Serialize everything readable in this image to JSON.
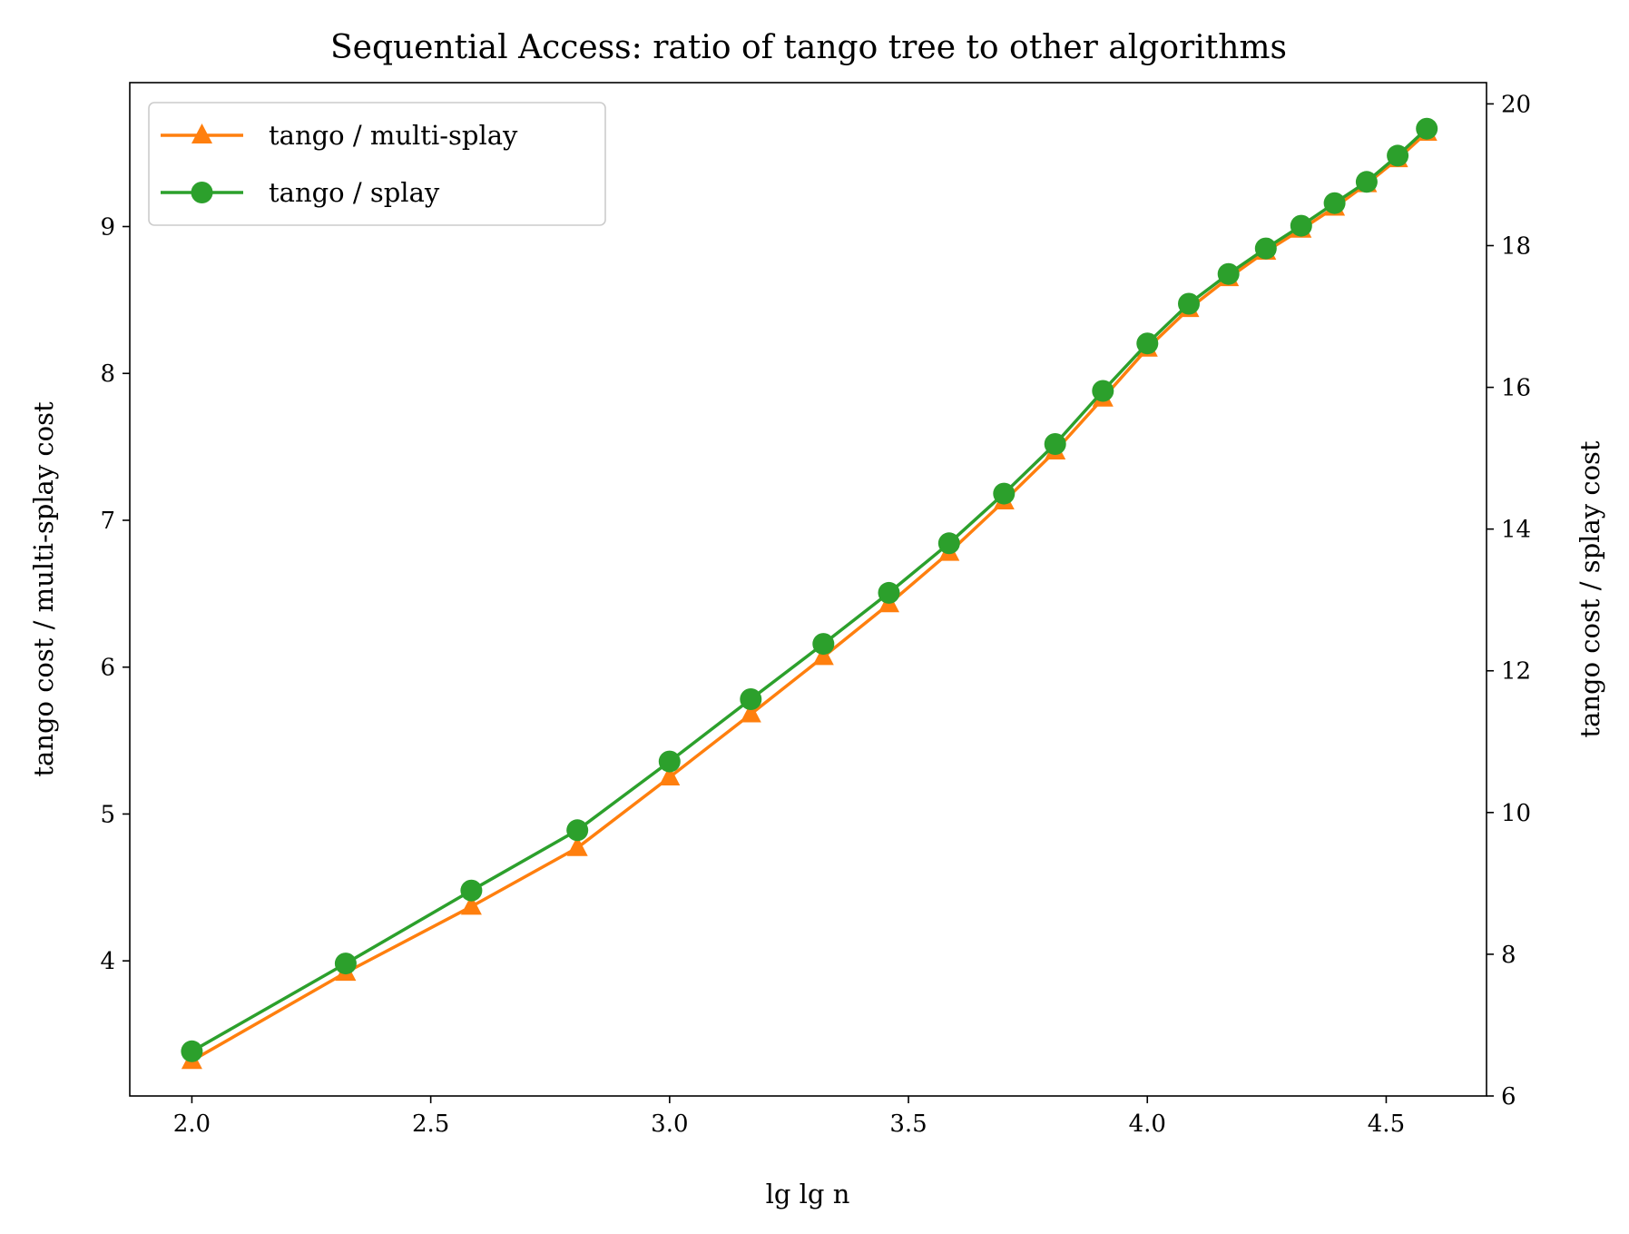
{
  "chart_data": {
    "type": "line",
    "title": "Sequential Access: ratio of tango tree to other algorithms",
    "xlabel": "lg lg n",
    "ylabel_left": "tango cost / multi-splay cost",
    "ylabel_right": "tango cost / splay cost",
    "xlim": [
      1.87,
      4.71
    ],
    "ylim_left": [
      3.08,
      9.98
    ],
    "ylim_right": [
      6.0,
      20.3
    ],
    "x_ticks": [
      "2.0",
      "2.5",
      "3.0",
      "3.5",
      "4.0",
      "4.5"
    ],
    "y_left_ticks": [
      "4",
      "5",
      "6",
      "7",
      "8",
      "9"
    ],
    "y_right_ticks": [
      "6",
      "8",
      "10",
      "12",
      "14",
      "16",
      "18",
      "20"
    ],
    "grid": false,
    "legend_position": "upper-left",
    "x": [
      2.0,
      2.322,
      2.585,
      2.807,
      3.0,
      3.17,
      3.322,
      3.459,
      3.585,
      3.7,
      3.807,
      3.907,
      4.0,
      4.087,
      4.17,
      4.248,
      4.322,
      4.392,
      4.459,
      4.524,
      4.585
    ],
    "series": [
      {
        "name": "tango / multi-splay",
        "axis": "left",
        "color": "#ff7f0e",
        "marker": "triangle",
        "values": [
          3.32,
          3.92,
          4.37,
          4.77,
          5.25,
          5.68,
          6.07,
          6.43,
          6.78,
          7.13,
          7.47,
          7.83,
          8.17,
          8.44,
          8.65,
          8.83,
          8.98,
          9.13,
          9.29,
          9.46,
          9.64
        ]
      },
      {
        "name": "tango / splay",
        "axis": "right",
        "color": "#2ca02c",
        "marker": "circle",
        "values": [
          6.63,
          7.87,
          8.9,
          9.75,
          10.72,
          11.6,
          12.38,
          13.1,
          13.8,
          14.5,
          15.2,
          15.95,
          16.62,
          17.18,
          17.6,
          17.96,
          18.28,
          18.6,
          18.9,
          19.27,
          19.65
        ]
      }
    ]
  }
}
